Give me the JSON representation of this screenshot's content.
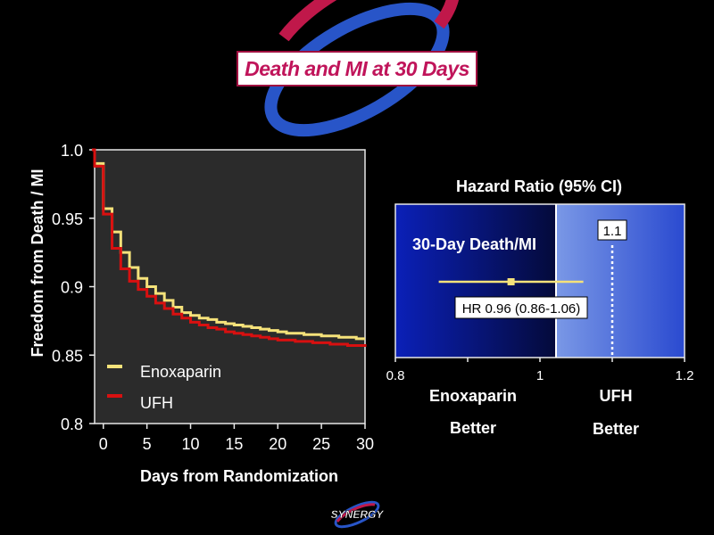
{
  "slide_title": "Death and MI at 30 Days",
  "logo_text": "SYNERGY",
  "colors": {
    "enoxaparin": "#f5e27a",
    "ufh": "#d81010",
    "plot_bg": "#2b2b2b",
    "forest_left": "#0a1a9a",
    "forest_right": "#5878d8",
    "title_text": "#c0145a"
  },
  "chart_data": [
    {
      "type": "line",
      "xlabel": "Days from Randomization",
      "ylabel": "Freedom from Death / MI",
      "xlim": [
        -1,
        30
      ],
      "ylim": [
        0.8,
        1.0
      ],
      "xticks": [
        0,
        5,
        10,
        15,
        20,
        25,
        30
      ],
      "xtick_labels": [
        "0",
        "5",
        "10",
        "15",
        "20",
        "25",
        "30"
      ],
      "yticks": [
        1.0,
        0.95,
        0.9,
        0.85,
        0.8
      ],
      "ytick_labels": [
        "1.0",
        "0.95",
        "0.9",
        "0.85",
        "0.8"
      ],
      "legend_position": "bottom-left",
      "series": [
        {
          "name": "Enoxaparin",
          "color": "#f5e27a",
          "x": [
            -1.5,
            -1,
            0,
            1,
            2,
            3,
            4,
            5,
            6,
            7,
            8,
            9,
            10,
            11,
            12,
            13,
            14,
            15,
            16,
            17,
            18,
            19,
            20,
            21,
            22,
            23,
            24,
            25,
            26,
            27,
            28,
            29,
            30
          ],
          "y": [
            1.0,
            0.99,
            0.957,
            0.94,
            0.925,
            0.914,
            0.906,
            0.9,
            0.895,
            0.89,
            0.885,
            0.881,
            0.879,
            0.877,
            0.876,
            0.874,
            0.873,
            0.872,
            0.871,
            0.87,
            0.869,
            0.868,
            0.867,
            0.866,
            0.866,
            0.865,
            0.865,
            0.864,
            0.864,
            0.863,
            0.863,
            0.862,
            0.862
          ]
        },
        {
          "name": "UFH",
          "color": "#d81010",
          "x": [
            -1.5,
            -1,
            0,
            1,
            2,
            3,
            4,
            5,
            6,
            7,
            8,
            9,
            10,
            11,
            12,
            13,
            14,
            15,
            16,
            17,
            18,
            19,
            20,
            21,
            22,
            23,
            24,
            25,
            26,
            27,
            28,
            29,
            30
          ],
          "y": [
            1.0,
            0.988,
            0.953,
            0.928,
            0.913,
            0.904,
            0.898,
            0.893,
            0.888,
            0.884,
            0.88,
            0.877,
            0.874,
            0.872,
            0.87,
            0.869,
            0.867,
            0.866,
            0.865,
            0.864,
            0.863,
            0.862,
            0.861,
            0.861,
            0.86,
            0.86,
            0.859,
            0.859,
            0.858,
            0.858,
            0.857,
            0.857,
            0.856
          ]
        }
      ]
    },
    {
      "type": "forest",
      "title": "Hazard Ratio (95% CI)",
      "xlim": [
        0.8,
        1.2
      ],
      "xticks": [
        0.8,
        1,
        1.2
      ],
      "xtick_labels": [
        "0.8",
        "1",
        "1.2"
      ],
      "row_label": "30-Day Death/MI",
      "hr": 0.96,
      "ci": [
        0.86,
        1.06
      ],
      "hr_label": "HR 0.96 (0.86-1.06)",
      "reference_line": 1.1,
      "reference_label": "1.1",
      "left_label": [
        "Enoxaparin",
        "Better"
      ],
      "right_label": [
        "UFH",
        "Better"
      ]
    }
  ]
}
